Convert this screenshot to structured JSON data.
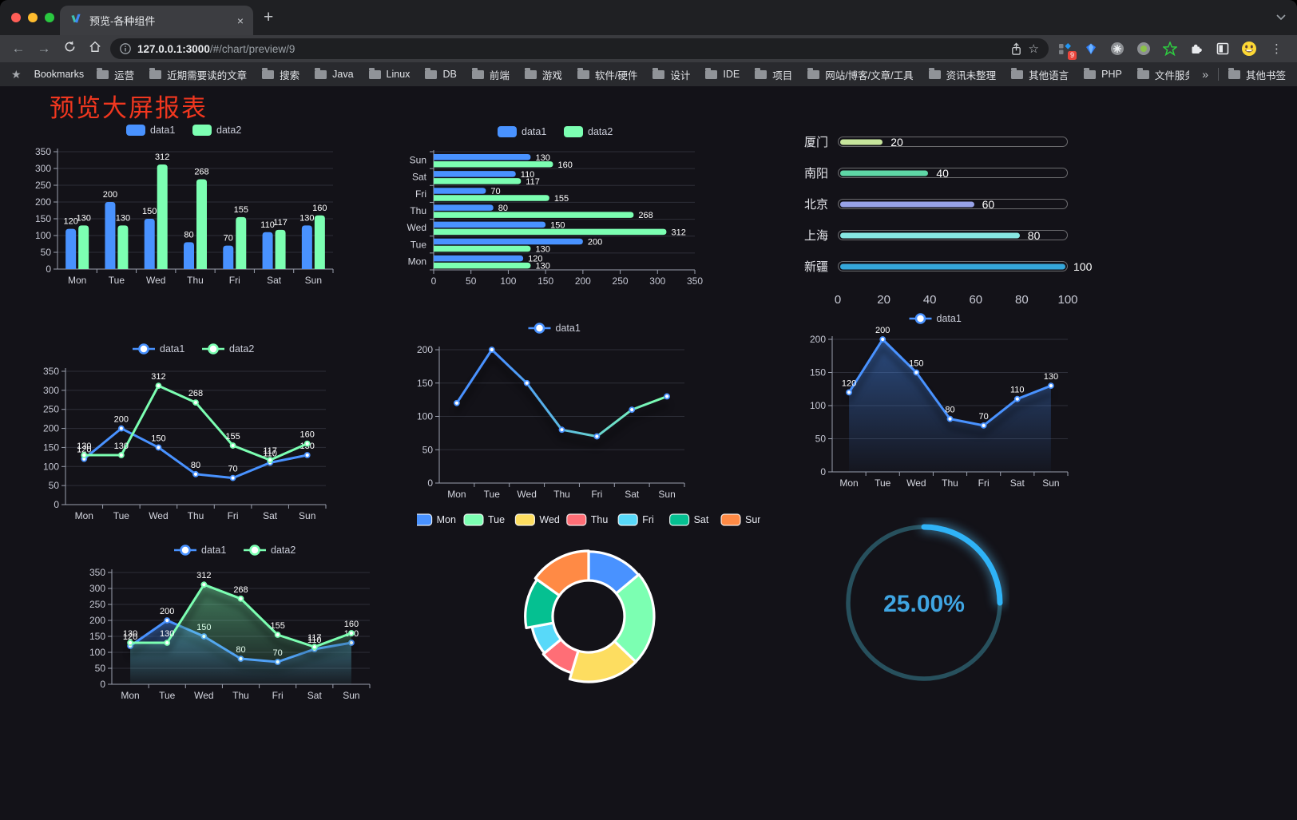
{
  "window": {
    "tab_title": "预览-各种组件",
    "tab_close": "×",
    "new_tab": "+",
    "url_host": "127.0.0.1:3000",
    "url_path": "/#/chart/preview/9",
    "bookmarks_label": "Bookmarks",
    "bookmarks": [
      "运营",
      "近期需要读的文章",
      "搜索",
      "Java",
      "Linux",
      "DB",
      "前端",
      "游戏",
      "软件/硬件",
      "设计",
      "IDE",
      "项目",
      "网站/博客/文章/工具",
      "资讯未整理",
      "其他语言",
      "PHP",
      "文件服务器"
    ],
    "bookmarks_overflow": "»",
    "other_bookmarks": "其他书签",
    "extensions_badge": "9",
    "traffic_lights": [
      "#ff5e57",
      "#febc2e",
      "#2ac840"
    ]
  },
  "page": {
    "title": "预览大屏报表",
    "title_color": "#f0371f",
    "background": "#131218"
  },
  "palette": {
    "blue": "#4992ff",
    "green": "#7cffb2",
    "yellow": "#fddd60",
    "red": "#ff6e76",
    "cyan": "#58d9f9",
    "teal": "#05c091",
    "orange": "#ff8a45"
  },
  "chart_data": [
    {
      "id": "bar_vertical",
      "type": "bar",
      "categories": [
        "Mon",
        "Tue",
        "Wed",
        "Thu",
        "Fri",
        "Sat",
        "Sun"
      ],
      "series": [
        {
          "name": "data1",
          "color": "#4992ff",
          "values": [
            120,
            200,
            150,
            80,
            70,
            110,
            130
          ]
        },
        {
          "name": "data2",
          "color": "#7cffb2",
          "values": [
            130,
            130,
            312,
            268,
            155,
            117,
            160
          ]
        }
      ],
      "ylim": [
        0,
        350
      ],
      "ystep": 50,
      "legend_position": "top"
    },
    {
      "id": "bar_horizontal",
      "type": "hbar",
      "categories": [
        "Mon",
        "Tue",
        "Wed",
        "Thu",
        "Fri",
        "Sat",
        "Sun"
      ],
      "series": [
        {
          "name": "data1",
          "color": "#4992ff",
          "values": [
            120,
            200,
            150,
            80,
            70,
            110,
            130
          ]
        },
        {
          "name": "data2",
          "color": "#7cffb2",
          "values": [
            130,
            130,
            312,
            268,
            155,
            117,
            160
          ]
        }
      ],
      "xlim": [
        0,
        350
      ],
      "xstep": 50,
      "legend_position": "top"
    },
    {
      "id": "progress_bars",
      "type": "progress-list",
      "items": [
        {
          "label": "厦门",
          "value": 20,
          "color": "#c7e59c"
        },
        {
          "label": "南阳",
          "value": 40,
          "color": "#5ed7a6"
        },
        {
          "label": "北京",
          "value": 60,
          "color": "#97a2e8"
        },
        {
          "label": "上海",
          "value": 80,
          "color": "#87e6e2"
        },
        {
          "label": "新疆",
          "value": 100,
          "color": "#35a7da"
        }
      ],
      "xlim": [
        0,
        100
      ],
      "xticks": [
        0,
        20,
        40,
        60,
        80,
        100
      ]
    },
    {
      "id": "line_two_series",
      "type": "line",
      "categories": [
        "Mon",
        "Tue",
        "Wed",
        "Thu",
        "Fri",
        "Sat",
        "Sun"
      ],
      "series": [
        {
          "name": "data1",
          "color": "#4992ff",
          "values": [
            120,
            200,
            150,
            80,
            70,
            110,
            130
          ],
          "labels": true
        },
        {
          "name": "data2",
          "color": "#7cffb2",
          "values": [
            130,
            130,
            312,
            268,
            155,
            117,
            160
          ],
          "labels": true
        }
      ],
      "ylim": [
        0,
        350
      ],
      "ystep": 50
    },
    {
      "id": "line_gradient",
      "type": "line",
      "categories": [
        "Mon",
        "Tue",
        "Wed",
        "Thu",
        "Fri",
        "Sat",
        "Sun"
      ],
      "series": [
        {
          "name": "data1",
          "color": "#4992ff",
          "gradient": [
            "#4992ff",
            "#7cffb2"
          ],
          "values": [
            120,
            200,
            150,
            80,
            70,
            110,
            130
          ],
          "labels": false,
          "shadow": true
        }
      ],
      "ylim": [
        0,
        200
      ],
      "ystep": 50
    },
    {
      "id": "area_single",
      "type": "line",
      "categories": [
        "Mon",
        "Tue",
        "Wed",
        "Thu",
        "Fri",
        "Sat",
        "Sun"
      ],
      "series": [
        {
          "name": "data1",
          "color": "#4992ff",
          "values": [
            120,
            200,
            150,
            80,
            70,
            110,
            130
          ],
          "labels": true,
          "area": true,
          "shadow": true
        }
      ],
      "ylim": [
        0,
        200
      ],
      "ystep": 50
    },
    {
      "id": "line_area_two",
      "type": "line",
      "categories": [
        "Mon",
        "Tue",
        "Wed",
        "Thu",
        "Fri",
        "Sat",
        "Sun"
      ],
      "series": [
        {
          "name": "data1",
          "color": "#4992ff",
          "values": [
            120,
            200,
            150,
            80,
            70,
            110,
            130
          ],
          "labels": true,
          "area": true,
          "shadow": true
        },
        {
          "name": "data2",
          "color": "#7cffb2",
          "values": [
            130,
            130,
            312,
            268,
            155,
            117,
            160
          ],
          "labels": true,
          "area": true,
          "shadow": true
        }
      ],
      "ylim": [
        0,
        350
      ],
      "ystep": 50
    },
    {
      "id": "donut_rose",
      "type": "pie",
      "legend": [
        "Mon",
        "Tue",
        "Wed",
        "Thu",
        "Fri",
        "Sat",
        "Sun"
      ],
      "values": [
        120,
        200,
        150,
        80,
        70,
        110,
        130
      ],
      "colors": [
        "#4992ff",
        "#7cffb2",
        "#fddd60",
        "#ff6e76",
        "#58d9f9",
        "#05c091",
        "#ff8a45"
      ]
    },
    {
      "id": "gauge_ring",
      "type": "gauge",
      "value": 25,
      "label": "25.00%",
      "color": "#2fb3f7",
      "track_color": "#27505d",
      "text_color": "#3fa5e2"
    }
  ]
}
